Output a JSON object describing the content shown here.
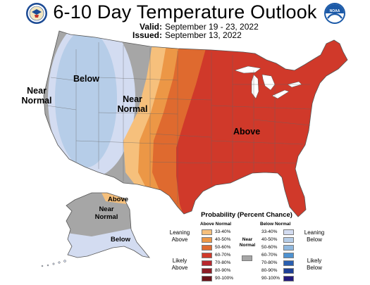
{
  "header": {
    "title": "6-10 Day Temperature Outlook",
    "valid_label": "Valid:",
    "valid_value": "September 19 - 23, 2022",
    "issued_label": "Issued:",
    "issued_value": "September 13, 2022"
  },
  "logos": {
    "left": "commerce-seal-icon",
    "right": "noaa-logo-icon",
    "noaa_text": "NOAA"
  },
  "map_labels": {
    "west_below": "Below",
    "west_coast_near_normal": [
      "Near",
      "Normal"
    ],
    "interior_near_normal": [
      "Near",
      "Normal"
    ],
    "east_above": "Above",
    "alaska_above": "Above",
    "alaska_near_normal": [
      "Near",
      "Normal"
    ],
    "alaska_below": "Below"
  },
  "legend": {
    "title": "Probability (Percent Chance)",
    "above_header": "Above Normal",
    "below_header": "Below Normal",
    "above_ranges": [
      "33-40%",
      "40-50%",
      "50-60%",
      "60-70%",
      "70-80%",
      "80-90%",
      "90-100%"
    ],
    "below_ranges": [
      "33-40%",
      "40-50%",
      "50-60%",
      "60-70%",
      "70-80%",
      "80-90%",
      "90-100%"
    ],
    "above_colors": [
      "#f6c07c",
      "#ec9746",
      "#df6a2f",
      "#d0392a",
      "#b8282e",
      "#8d1c25",
      "#6a1219"
    ],
    "below_colors": [
      "#d3dcf1",
      "#b6cde8",
      "#8fb8df",
      "#4e92d1",
      "#2a5fb0",
      "#1d3f96",
      "#231b7c"
    ],
    "near_normal_label": [
      "Near",
      "Normal"
    ],
    "near_normal_color": "#a6a6a6",
    "leaning_above": [
      "Leaning",
      "Above"
    ],
    "likely_above": [
      "Likely",
      "Above"
    ],
    "leaning_below": [
      "Leaning",
      "Below"
    ],
    "likely_below": [
      "Likely",
      "Below"
    ]
  }
}
